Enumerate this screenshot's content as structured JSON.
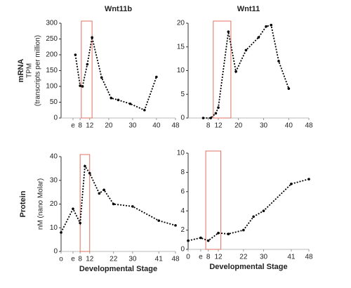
{
  "chart_data": [
    {
      "type": "line",
      "title": "Wnt11b",
      "y_label_bold": "mRNA",
      "y_label": "TPM",
      "y_sublabel": "(transcripts per million)",
      "x": [
        6,
        8,
        9,
        11,
        13,
        17,
        21,
        24,
        29,
        35,
        40
      ],
      "values": [
        200,
        102,
        100,
        170,
        255,
        128,
        63,
        57,
        45,
        25,
        130
      ],
      "color": "#000000",
      "highlight": [
        8.5,
        13
      ],
      "highlight_color": "#e07060",
      "xlim": [
        0,
        48
      ],
      "xticks": [
        {
          "value": 5,
          "label": "e"
        },
        8,
        12,
        20,
        30,
        40,
        48
      ],
      "ylim": [
        0,
        300
      ],
      "yticks": [
        0,
        50,
        100,
        150,
        200,
        250,
        300
      ]
    },
    {
      "type": "line",
      "title": "Wnt11",
      "x": [
        6,
        9,
        11,
        12,
        16,
        19,
        23,
        28,
        31,
        33,
        36,
        40
      ],
      "values": [
        0,
        0,
        1,
        2.2,
        18.2,
        9.8,
        14.3,
        17,
        19.3,
        19.6,
        12,
        6.2
      ],
      "color": "#000000",
      "highlight": [
        10,
        17
      ],
      "highlight_color": "#e07060",
      "xlim": [
        0,
        48
      ],
      "xticks": [
        8,
        12,
        20,
        30,
        40,
        48
      ],
      "ylim": [
        0,
        20
      ],
      "yticks": [
        0,
        5,
        10,
        15,
        20
      ]
    },
    {
      "type": "line",
      "y_label_bold": "Protein",
      "y_label": "nM (nano Molar)",
      "x_label": "Developmental Stage",
      "x": [
        0,
        5,
        8,
        10,
        12,
        16,
        18,
        22,
        30,
        41,
        48
      ],
      "values": [
        8,
        18,
        12,
        36,
        33,
        24.5,
        26,
        20,
        19,
        13,
        11
      ],
      "color": "#000000",
      "highlight": [
        8,
        12
      ],
      "highlight_color": "#e07060",
      "xlim": [
        0,
        48
      ],
      "xticks": [
        {
          "value": 0,
          "label": "o"
        },
        {
          "value": 5,
          "label": "e"
        },
        8,
        12,
        22,
        30,
        41,
        48
      ],
      "ylim": [
        0,
        40
      ],
      "yticks": [
        0,
        10,
        20,
        30,
        40
      ]
    },
    {
      "type": "line",
      "x_label": "Developmental Stage",
      "x": [
        0,
        5,
        8,
        12,
        16,
        22,
        26,
        30,
        41,
        48
      ],
      "values": [
        0.9,
        1.2,
        0.9,
        1.7,
        1.6,
        2.0,
        3.4,
        4,
        6.8,
        7.3
      ],
      "color": "#000000",
      "highlight": [
        7,
        13
      ],
      "highlight_color": "#e07060",
      "xlim": [
        0,
        48
      ],
      "xticks": [
        0,
        {
          "value": 5,
          "label": "e"
        },
        8,
        12,
        22,
        30,
        41,
        48
      ],
      "ylim": [
        0,
        10
      ],
      "yticks": [
        0,
        2,
        4,
        6,
        8,
        10
      ]
    }
  ]
}
